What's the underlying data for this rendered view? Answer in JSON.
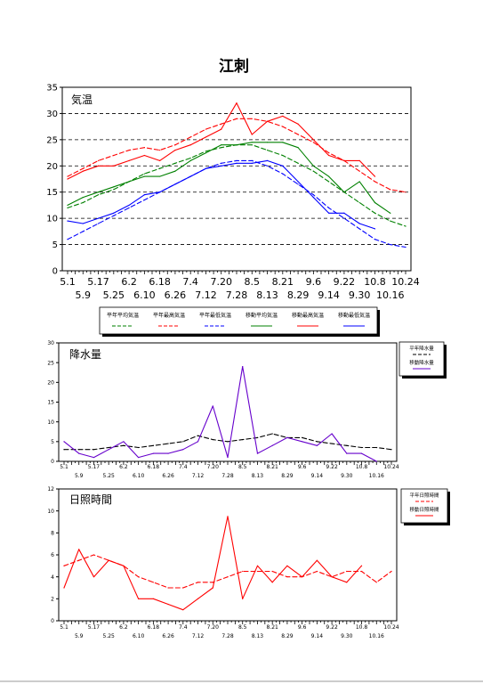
{
  "page_title": "江刺",
  "dates": [
    "5.1",
    "5.9",
    "5.17",
    "5.25",
    "6.2",
    "6.10",
    "6.18",
    "6.26",
    "7.4",
    "7.12",
    "7.20",
    "7.28",
    "8.5",
    "8.13",
    "8.21",
    "8.29",
    "9.6",
    "9.14",
    "9.22",
    "9.30",
    "10.8",
    "10.16",
    "10.24"
  ],
  "colors": {
    "mean": "#008000",
    "max": "#ff0000",
    "min": "#0000ff",
    "precip_normal": "#000000",
    "precip_actual": "#6600cc",
    "sun": "#ff0000"
  },
  "legend_temp": [
    "平年平均気温",
    "平年最高気温",
    "平年最低気温",
    "移動平均気温",
    "移動最高気温",
    "移動最低気温"
  ],
  "legend_precip": [
    "平年降水量",
    "移動降水量"
  ],
  "legend_sun": [
    "平年日照時間",
    "移動日照時間"
  ],
  "chart_data": [
    {
      "type": "line",
      "title": "気温",
      "ylim": [
        0,
        35
      ],
      "yticks": [
        0,
        5,
        10,
        15,
        20,
        25,
        30,
        35
      ],
      "grid": true,
      "legend": "bottom",
      "x_labels_top": [
        "5.1",
        "5.17",
        "6.2",
        "6.18",
        "7.4",
        "7.20",
        "8.5",
        "8.21",
        "9.6",
        "9.22",
        "10.8",
        "10.24"
      ],
      "x_labels_bottom": [
        "5.9",
        "5.25",
        "6.10",
        "6.26",
        "7.12",
        "7.28",
        "8.13",
        "8.29",
        "9.14",
        "9.30",
        "10.16"
      ],
      "series": [
        {
          "name": "平年平均気温",
          "style": "dashed",
          "color": "#008000",
          "values": [
            12,
            13,
            14.5,
            15.5,
            17,
            18.5,
            19.5,
            20.5,
            21.5,
            22.8,
            23.5,
            24,
            24,
            23,
            22,
            20.5,
            19,
            17,
            15,
            13,
            11,
            9.5,
            8.5
          ]
        },
        {
          "name": "平年最高気温",
          "style": "dashed",
          "color": "#ff0000",
          "values": [
            18,
            19.5,
            21,
            22,
            23,
            23.5,
            23,
            24,
            25.5,
            27,
            28,
            29,
            29,
            28.5,
            27.5,
            26,
            24.5,
            22.5,
            21,
            19,
            17,
            15.5,
            15
          ]
        },
        {
          "name": "平年最低気温",
          "style": "dashed",
          "color": "#0000ff",
          "values": [
            6,
            7.5,
            9,
            10.5,
            12,
            13.5,
            15,
            16.5,
            18,
            19.5,
            20.5,
            21,
            21,
            20,
            18.5,
            16.5,
            14.5,
            12,
            10,
            8,
            6,
            5,
            4.5
          ]
        },
        {
          "name": "移動平均気温",
          "style": "solid",
          "color": "#008000",
          "values": [
            12.5,
            14,
            15,
            16,
            17,
            18,
            18,
            19,
            21,
            22.5,
            24,
            24,
            24.5,
            24.5,
            24.5,
            23.5,
            20,
            18,
            15,
            17,
            13,
            11,
            null
          ]
        },
        {
          "name": "移動最高気温",
          "style": "solid",
          "color": "#ff0000",
          "values": [
            17.5,
            19,
            20,
            20,
            21,
            22,
            21,
            23,
            24,
            25.5,
            27,
            32,
            26,
            28.5,
            29.5,
            28,
            25,
            22,
            21,
            21,
            18,
            null,
            null
          ]
        },
        {
          "name": "移動最低気温",
          "style": "solid",
          "color": "#0000ff",
          "values": [
            9.5,
            9,
            10,
            11,
            12.5,
            14.5,
            15,
            16.5,
            18,
            19.5,
            20,
            20.5,
            20.5,
            21,
            20,
            17,
            14,
            11,
            11,
            9,
            8,
            null,
            null
          ]
        }
      ]
    },
    {
      "type": "line",
      "title": "降水量",
      "ylim": [
        0,
        30
      ],
      "yticks": [
        0,
        5,
        10,
        15,
        20,
        25,
        30
      ],
      "grid": false,
      "legend": "right",
      "x_labels_top": [
        "5.1",
        "5.17",
        "6.2",
        "6.18",
        "7.4",
        "7.20",
        "8.5",
        "8.21",
        "9.6",
        "9.22",
        "10.8",
        "10.24"
      ],
      "x_labels_bottom": [
        "5.9",
        "5.25",
        "6.10",
        "6.26",
        "7.12",
        "7.28",
        "8.13",
        "8.29",
        "9.14",
        "9.30",
        "10.16"
      ],
      "series": [
        {
          "name": "平年降水量",
          "style": "dashed",
          "color": "#000000",
          "values": [
            3,
            3,
            3,
            3.5,
            4,
            3.5,
            4,
            4.5,
            5,
            6.5,
            5.5,
            5,
            5.5,
            6,
            7,
            6,
            6,
            5,
            4.5,
            4,
            3.5,
            3.5,
            3
          ]
        },
        {
          "name": "移動降水量",
          "style": "solid",
          "color": "#6600cc",
          "values": [
            5,
            2,
            1,
            3,
            5,
            1,
            2,
            2,
            3,
            5,
            14,
            1,
            24,
            2,
            4,
            6,
            5,
            4,
            7,
            2,
            2,
            0,
            null
          ]
        }
      ]
    },
    {
      "type": "line",
      "title": "日照時間",
      "ylim": [
        0,
        12
      ],
      "yticks": [
        0,
        2,
        4,
        6,
        8,
        10,
        12
      ],
      "grid": false,
      "legend": "right",
      "x_labels_top": [
        "5.1",
        "5.17",
        "6.2",
        "6.18",
        "7.4",
        "7.20",
        "8.5",
        "8.21",
        "9.6",
        "9.22",
        "10.8",
        "10.24"
      ],
      "x_labels_bottom": [
        "5.9",
        "5.25",
        "6.10",
        "6.26",
        "7.12",
        "7.28",
        "8.13",
        "8.29",
        "9.14",
        "9.30",
        "10.16"
      ],
      "series": [
        {
          "name": "平年日照時間",
          "style": "dashed",
          "color": "#ff0000",
          "values": [
            5,
            5.5,
            6,
            5.5,
            5,
            4,
            3.5,
            3,
            3,
            3.5,
            3.5,
            4,
            4.5,
            4.5,
            4.5,
            4,
            4,
            4.5,
            4,
            4.5,
            4.5,
            3.5,
            4.5
          ]
        },
        {
          "name": "移動日照時間",
          "style": "solid",
          "color": "#ff0000",
          "values": [
            3,
            6.5,
            4,
            5.5,
            5,
            2,
            2,
            1.5,
            1,
            2,
            3,
            9.5,
            2,
            5,
            3.5,
            5,
            4,
            5.5,
            4,
            3.5,
            5,
            null,
            null
          ]
        }
      ]
    }
  ]
}
